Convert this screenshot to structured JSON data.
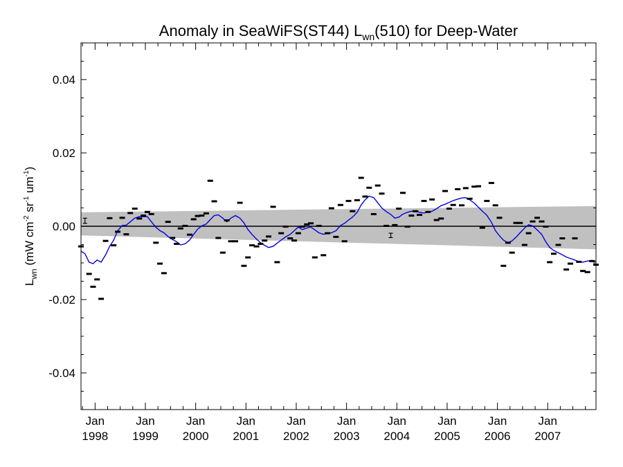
{
  "chart_data": {
    "type": "scatter",
    "title": {
      "prefix": "Anomaly in SeaWiFS(ST44) L",
      "sub": "wn",
      "suffix": "(510) for Deep-Water"
    },
    "ylabel": {
      "main": "L",
      "main_sub": "wn",
      "open": " (mW cm",
      "exp1": "-2",
      "mid": " sr",
      "exp2": "-1",
      "unit": " um",
      "exp3": "-1",
      "close": ")"
    },
    "xlim": [
      1997.72,
      2007.96
    ],
    "ylim": [
      -0.05,
      0.05
    ],
    "y_ticks": [
      {
        "value": 0.04,
        "label": "0.04"
      },
      {
        "value": 0.02,
        "label": "0.02"
      },
      {
        "value": 0.0,
        "label": "0.00"
      },
      {
        "value": -0.02,
        "label": "-0.02"
      },
      {
        "value": -0.04,
        "label": "-0.04"
      }
    ],
    "x_ticks": [
      {
        "value": 1998.0,
        "month": "Jan",
        "year": "1998"
      },
      {
        "value": 1999.0,
        "month": "Jan",
        "year": "1999"
      },
      {
        "value": 2000.0,
        "month": "Jan",
        "year": "2000"
      },
      {
        "value": 2001.0,
        "month": "Jan",
        "year": "2001"
      },
      {
        "value": 2002.0,
        "month": "Jan",
        "year": "2002"
      },
      {
        "value": 2003.0,
        "month": "Jan",
        "year": "2003"
      },
      {
        "value": 2004.0,
        "month": "Jan",
        "year": "2004"
      },
      {
        "value": 2005.0,
        "month": "Jan",
        "year": "2005"
      },
      {
        "value": 2006.0,
        "month": "Jan",
        "year": "2006"
      },
      {
        "value": 2007.0,
        "month": "Jan",
        "year": "2007"
      }
    ],
    "uncertainty_band": {
      "x": [
        1997.72,
        2007.96
      ],
      "upper": [
        0.0038,
        0.0055
      ],
      "lower": [
        -0.0025,
        -0.0063
      ],
      "color": "#c0c0c0"
    },
    "reference_line": {
      "y": 0.0,
      "color": "#000000"
    },
    "points": [
      {
        "x": 1997.72,
        "y": -0.0055
      },
      {
        "x": 1997.8,
        "y": 0.0015,
        "error": 0.0007
      },
      {
        "x": 1997.88,
        "y": -0.013
      },
      {
        "x": 1997.96,
        "y": -0.0165
      },
      {
        "x": 1998.04,
        "y": -0.0145
      },
      {
        "x": 1998.12,
        "y": -0.0198
      },
      {
        "x": 1998.21,
        "y": -0.004
      },
      {
        "x": 1998.29,
        "y": 0.0022
      },
      {
        "x": 1998.37,
        "y": -0.0052
      },
      {
        "x": 1998.45,
        "y": -0.0015
      },
      {
        "x": 1998.54,
        "y": 0.0023
      },
      {
        "x": 1998.62,
        "y": -0.0022
      },
      {
        "x": 1998.7,
        "y": 0.0036
      },
      {
        "x": 1998.79,
        "y": 0.0048
      },
      {
        "x": 1998.88,
        "y": 0.0021
      },
      {
        "x": 1998.96,
        "y": 0.0029
      },
      {
        "x": 1999.04,
        "y": 0.0039
      },
      {
        "x": 1999.12,
        "y": 0.0033
      },
      {
        "x": 1999.21,
        "y": -0.0045
      },
      {
        "x": 1999.29,
        "y": -0.0102
      },
      {
        "x": 1999.37,
        "y": -0.0128
      },
      {
        "x": 1999.45,
        "y": 0.0012
      },
      {
        "x": 1999.54,
        "y": -0.0032
      },
      {
        "x": 1999.62,
        "y": -0.0048
      },
      {
        "x": 1999.7,
        "y": -0.0006
      },
      {
        "x": 1999.79,
        "y": 0.0001
      },
      {
        "x": 1999.88,
        "y": -0.0023
      },
      {
        "x": 1999.96,
        "y": 0.0019
      },
      {
        "x": 2000.04,
        "y": 0.0028
      },
      {
        "x": 2000.12,
        "y": 0.0029
      },
      {
        "x": 2000.21,
        "y": 0.0035
      },
      {
        "x": 2000.29,
        "y": 0.0124
      },
      {
        "x": 2000.37,
        "y": 0.0068
      },
      {
        "x": 2000.45,
        "y": -0.0032
      },
      {
        "x": 2000.54,
        "y": -0.0072
      },
      {
        "x": 2000.62,
        "y": 0.0016
      },
      {
        "x": 2000.7,
        "y": -0.0041
      },
      {
        "x": 2000.79,
        "y": -0.0041
      },
      {
        "x": 2000.88,
        "y": 0.0064
      },
      {
        "x": 2000.96,
        "y": -0.0108
      },
      {
        "x": 2001.04,
        "y": -0.0085
      },
      {
        "x": 2001.12,
        "y": -0.0052
      },
      {
        "x": 2001.21,
        "y": -0.0055
      },
      {
        "x": 2001.29,
        "y": -0.0048
      },
      {
        "x": 2001.37,
        "y": -0.0039
      },
      {
        "x": 2001.45,
        "y": -0.0028
      },
      {
        "x": 2001.54,
        "y": 0.0053
      },
      {
        "x": 2001.62,
        "y": -0.0098
      },
      {
        "x": 2001.7,
        "y": -0.0019
      },
      {
        "x": 2001.79,
        "y": -0.0001
      },
      {
        "x": 2001.88,
        "y": -0.0033
      },
      {
        "x": 2001.96,
        "y": -0.0039
      },
      {
        "x": 2002.04,
        "y": -0.0019
      },
      {
        "x": 2002.12,
        "y": -0.0001
      },
      {
        "x": 2002.21,
        "y": 0.0005
      },
      {
        "x": 2002.29,
        "y": 0.0008
      },
      {
        "x": 2002.37,
        "y": -0.0085
      },
      {
        "x": 2002.45,
        "y": 0.0001
      },
      {
        "x": 2002.54,
        "y": -0.0079
      },
      {
        "x": 2002.62,
        "y": -0.0019
      },
      {
        "x": 2002.7,
        "y": 0.0049
      },
      {
        "x": 2002.79,
        "y": -0.0029
      },
      {
        "x": 2002.88,
        "y": 0.0058
      },
      {
        "x": 2002.96,
        "y": -0.0041
      },
      {
        "x": 2003.04,
        "y": 0.0069
      },
      {
        "x": 2003.12,
        "y": 0.0041
      },
      {
        "x": 2003.21,
        "y": 0.0071
      },
      {
        "x": 2003.29,
        "y": 0.0132
      },
      {
        "x": 2003.37,
        "y": 0.0081
      },
      {
        "x": 2003.45,
        "y": 0.0105
      },
      {
        "x": 2003.54,
        "y": 0.0033
      },
      {
        "x": 2003.62,
        "y": 0.0111
      },
      {
        "x": 2003.7,
        "y": 0.0089
      },
      {
        "x": 2003.79,
        "y": 0.0001
      },
      {
        "x": 2003.88,
        "y": -0.0025,
        "error": 0.0006
      },
      {
        "x": 2003.96,
        "y": 0.0003
      },
      {
        "x": 2004.04,
        "y": 0.0048
      },
      {
        "x": 2004.12,
        "y": 0.0091
      },
      {
        "x": 2004.21,
        "y": -0.0001
      },
      {
        "x": 2004.29,
        "y": 0.0029
      },
      {
        "x": 2004.37,
        "y": 0.0041
      },
      {
        "x": 2004.45,
        "y": 0.0031
      },
      {
        "x": 2004.54,
        "y": 0.0069
      },
      {
        "x": 2004.62,
        "y": 0.0039
      },
      {
        "x": 2004.7,
        "y": 0.0073
      },
      {
        "x": 2004.79,
        "y": 0.0017
      },
      {
        "x": 2004.88,
        "y": 0.0021
      },
      {
        "x": 2004.96,
        "y": 0.0096
      },
      {
        "x": 2005.04,
        "y": 0.0048
      },
      {
        "x": 2005.12,
        "y": 0.0058
      },
      {
        "x": 2005.21,
        "y": 0.0101
      },
      {
        "x": 2005.29,
        "y": 0.0057
      },
      {
        "x": 2005.37,
        "y": 0.0104
      },
      {
        "x": 2005.45,
        "y": 0.0075
      },
      {
        "x": 2005.54,
        "y": 0.0108
      },
      {
        "x": 2005.62,
        "y": 0.0109
      },
      {
        "x": 2005.7,
        "y": -0.0004
      },
      {
        "x": 2005.79,
        "y": 0.0069
      },
      {
        "x": 2005.88,
        "y": 0.0118
      },
      {
        "x": 2005.96,
        "y": 0.0057
      },
      {
        "x": 2006.04,
        "y": 0.0023
      },
      {
        "x": 2006.12,
        "y": -0.0108
      },
      {
        "x": 2006.21,
        "y": -0.0045
      },
      {
        "x": 2006.29,
        "y": -0.0072
      },
      {
        "x": 2006.37,
        "y": 0.0009
      },
      {
        "x": 2006.45,
        "y": 0.0009
      },
      {
        "x": 2006.54,
        "y": -0.0051
      },
      {
        "x": 2006.62,
        "y": -0.0019
      },
      {
        "x": 2006.7,
        "y": 0.0013
      },
      {
        "x": 2006.79,
        "y": 0.0023
      },
      {
        "x": 2006.88,
        "y": 0.0013
      },
      {
        "x": 2006.96,
        "y": -0.0001
      },
      {
        "x": 2007.04,
        "y": -0.0098
      },
      {
        "x": 2007.12,
        "y": -0.0075
      },
      {
        "x": 2007.21,
        "y": -0.0051
      },
      {
        "x": 2007.29,
        "y": -0.0033
      },
      {
        "x": 2007.37,
        "y": -0.0118
      },
      {
        "x": 2007.45,
        "y": -0.0102
      },
      {
        "x": 2007.54,
        "y": -0.0033
      },
      {
        "x": 2007.62,
        "y": -0.0097
      },
      {
        "x": 2007.7,
        "y": -0.0122
      },
      {
        "x": 2007.79,
        "y": -0.0125
      },
      {
        "x": 2007.88,
        "y": -0.0095
      },
      {
        "x": 2007.96,
        "y": -0.0105
      }
    ],
    "running_mean": {
      "color": "#0000e0",
      "x": [
        1997.72,
        1997.8,
        1997.88,
        1997.96,
        1998.04,
        1998.12,
        1998.21,
        1998.29,
        1998.37,
        1998.45,
        1998.54,
        1998.62,
        1998.7,
        1998.79,
        1998.88,
        1998.96,
        1999.04,
        1999.12,
        1999.21,
        1999.29,
        1999.37,
        1999.45,
        1999.54,
        1999.62,
        1999.7,
        1999.79,
        1999.88,
        1999.96,
        2000.04,
        2000.12,
        2000.21,
        2000.29,
        2000.37,
        2000.45,
        2000.54,
        2000.62,
        2000.7,
        2000.79,
        2000.88,
        2000.96,
        2001.04,
        2001.12,
        2001.21,
        2001.29,
        2001.37,
        2001.45,
        2001.54,
        2001.62,
        2001.7,
        2001.79,
        2001.88,
        2001.96,
        2002.04,
        2002.12,
        2002.21,
        2002.29,
        2002.37,
        2002.45,
        2002.54,
        2002.62,
        2002.7,
        2002.79,
        2002.88,
        2002.96,
        2003.04,
        2003.12,
        2003.21,
        2003.29,
        2003.37,
        2003.45,
        2003.54,
        2003.62,
        2003.7,
        2003.79,
        2003.88,
        2003.96,
        2004.04,
        2004.12,
        2004.21,
        2004.29,
        2004.37,
        2004.45,
        2004.54,
        2004.62,
        2004.7,
        2004.79,
        2004.88,
        2004.96,
        2005.04,
        2005.12,
        2005.21,
        2005.29,
        2005.37,
        2005.45,
        2005.54,
        2005.62,
        2005.7,
        2005.79,
        2005.88,
        2005.96,
        2006.04,
        2006.12,
        2006.21,
        2006.29,
        2006.37,
        2006.45,
        2006.54,
        2006.62,
        2006.7,
        2006.79,
        2006.88,
        2006.96,
        2007.04,
        2007.12,
        2007.21,
        2007.29,
        2007.37,
        2007.45,
        2007.54,
        2007.62,
        2007.7,
        2007.79,
        2007.88,
        2007.96
      ],
      "y": [
        -0.0068,
        -0.0075,
        -0.0098,
        -0.0102,
        -0.0092,
        -0.0098,
        -0.0078,
        -0.0055,
        -0.0038,
        -0.0012,
        0.0002,
        0.0003,
        0.0012,
        0.0022,
        0.0026,
        0.0026,
        0.0026,
        0.0012,
        -0.0003,
        -0.0012,
        -0.0018,
        -0.0028,
        -0.0036,
        -0.0042,
        -0.0051,
        -0.0048,
        -0.0038,
        -0.0022,
        -0.0008,
        0.0001,
        0.0006,
        0.0018,
        0.0029,
        0.0031,
        0.0022,
        0.0012,
        0.0022,
        0.0029,
        0.0022,
        0.0009,
        -0.0009,
        -0.0022,
        -0.0035,
        -0.0045,
        -0.0052,
        -0.0058,
        -0.0055,
        -0.0046,
        -0.0038,
        -0.0029,
        -0.0022,
        -0.0012,
        -0.0002,
        -0.0009,
        -0.0005,
        -0.0002,
        -0.001,
        -0.0018,
        -0.0022,
        -0.002,
        -0.0018,
        -0.0012,
        0.0002,
        0.0008,
        0.0017,
        0.0025,
        0.0038,
        0.0058,
        0.0072,
        0.0082,
        0.0078,
        0.0064,
        0.005,
        0.004,
        0.0032,
        0.0022,
        0.0025,
        0.0033,
        0.0038,
        0.0041,
        0.0042,
        0.0038,
        0.0036,
        0.0039,
        0.0041,
        0.0048,
        0.0056,
        0.006,
        0.0065,
        0.007,
        0.0074,
        0.0077,
        0.0078,
        0.0072,
        0.0063,
        0.0052,
        0.0041,
        0.003,
        0.0011,
        -0.0012,
        -0.0026,
        -0.0038,
        -0.0045,
        -0.004,
        -0.003,
        -0.0018,
        -0.0005,
        0.0004,
        0.0001,
        -0.001,
        -0.0022,
        -0.0042,
        -0.0058,
        -0.0066,
        -0.0072,
        -0.0078,
        -0.0084,
        -0.0088,
        -0.0092,
        -0.0097,
        -0.0098,
        -0.0095,
        -0.0093,
        -0.0096
      ]
    }
  }
}
